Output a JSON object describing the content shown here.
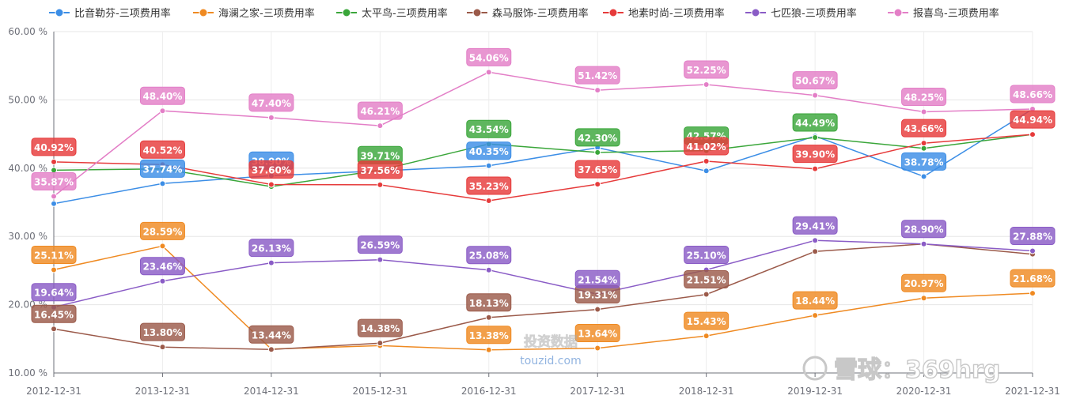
{
  "chart_data": {
    "type": "line",
    "categories": [
      "2012-12-31",
      "2013-12-31",
      "2014-12-31",
      "2015-12-31",
      "2016-12-31",
      "2017-12-31",
      "2018-12-31",
      "2019-12-31",
      "2020-12-31",
      "2021-12-31"
    ],
    "y_ticks": [
      "10.00 %",
      "20.00 %",
      "30.00 %",
      "40.00 %",
      "50.00 %",
      "60.00 %"
    ],
    "ylim": [
      10,
      60
    ],
    "grid": true,
    "legend_position": "top",
    "series": [
      {
        "name": "比音勒芬-三项费用率",
        "color": "#3c8ee6",
        "values": [
          34.8,
          37.74,
          38.9,
          39.6,
          40.35,
          43.0,
          39.6,
          44.7,
          38.78,
          48.66
        ]
      },
      {
        "name": "海澜之家-三项费用率",
        "color": "#ef8a22",
        "values": [
          25.11,
          28.59,
          13.5,
          14.0,
          13.38,
          13.64,
          15.43,
          18.44,
          20.97,
          21.68
        ]
      },
      {
        "name": "太平鸟-三项费用率",
        "color": "#3aa63a",
        "values": [
          39.7,
          39.9,
          37.3,
          39.71,
          43.54,
          42.3,
          42.57,
          44.49,
          42.9,
          44.94
        ]
      },
      {
        "name": "森马服饰-三项费用率",
        "color": "#9b5a4a",
        "values": [
          16.45,
          13.8,
          13.44,
          14.38,
          18.13,
          19.31,
          21.51,
          27.8,
          28.9,
          27.4
        ]
      },
      {
        "name": "地素时尚-三项费用率",
        "color": "#e63b3b",
        "values": [
          40.92,
          40.52,
          37.6,
          37.56,
          35.23,
          37.65,
          41.02,
          39.9,
          43.66,
          44.94
        ]
      },
      {
        "name": "七匹狼-三项费用率",
        "color": "#8a5cc6",
        "values": [
          19.64,
          23.46,
          26.13,
          26.59,
          25.08,
          21.54,
          25.1,
          29.41,
          28.9,
          27.88
        ]
      },
      {
        "name": "报喜鸟-三项费用率",
        "color": "#e37fc7",
        "values": [
          35.87,
          48.4,
          47.4,
          46.21,
          54.06,
          51.42,
          52.25,
          50.67,
          48.25,
          48.66
        ]
      }
    ],
    "data_labels": [
      {
        "series": 0,
        "index": 1,
        "text": "37.74%"
      },
      {
        "series": 0,
        "index": 2,
        "text": "38.90%"
      },
      {
        "series": 0,
        "index": 4,
        "text": "40.35%"
      },
      {
        "series": 0,
        "index": 8,
        "text": "38.78%"
      },
      {
        "series": 1,
        "index": 0,
        "text": "25.11%"
      },
      {
        "series": 1,
        "index": 1,
        "text": "28.59%"
      },
      {
        "series": 1,
        "index": 4,
        "text": "13.38%"
      },
      {
        "series": 1,
        "index": 5,
        "text": "13.64%"
      },
      {
        "series": 1,
        "index": 6,
        "text": "15.43%"
      },
      {
        "series": 1,
        "index": 7,
        "text": "18.44%"
      },
      {
        "series": 1,
        "index": 8,
        "text": "20.97%"
      },
      {
        "series": 1,
        "index": 9,
        "text": "21.68%"
      },
      {
        "series": 2,
        "index": 3,
        "text": "39.71%"
      },
      {
        "series": 2,
        "index": 4,
        "text": "43.54%"
      },
      {
        "series": 2,
        "index": 5,
        "text": "42.30%"
      },
      {
        "series": 2,
        "index": 6,
        "text": "42.57%"
      },
      {
        "series": 2,
        "index": 7,
        "text": "44.49%"
      },
      {
        "series": 3,
        "index": 0,
        "text": "16.45%"
      },
      {
        "series": 3,
        "index": 1,
        "text": "13.80%"
      },
      {
        "series": 3,
        "index": 2,
        "text": "13.44%"
      },
      {
        "series": 3,
        "index": 3,
        "text": "14.38%"
      },
      {
        "series": 3,
        "index": 4,
        "text": "18.13%"
      },
      {
        "series": 3,
        "index": 5,
        "text": "19.31%"
      },
      {
        "series": 3,
        "index": 6,
        "text": "21.51%"
      },
      {
        "series": 4,
        "index": 0,
        "text": "40.92%"
      },
      {
        "series": 4,
        "index": 1,
        "text": "40.52%"
      },
      {
        "series": 4,
        "index": 2,
        "text": "37.60%"
      },
      {
        "series": 4,
        "index": 3,
        "text": "37.56%"
      },
      {
        "series": 4,
        "index": 4,
        "text": "35.23%"
      },
      {
        "series": 4,
        "index": 5,
        "text": "37.65%"
      },
      {
        "series": 4,
        "index": 6,
        "text": "41.02%"
      },
      {
        "series": 4,
        "index": 7,
        "text": "39.90%"
      },
      {
        "series": 4,
        "index": 8,
        "text": "43.66%"
      },
      {
        "series": 4,
        "index": 9,
        "text": "44.94%"
      },
      {
        "series": 5,
        "index": 0,
        "text": "19.64%"
      },
      {
        "series": 5,
        "index": 1,
        "text": "23.46%"
      },
      {
        "series": 5,
        "index": 2,
        "text": "26.13%"
      },
      {
        "series": 5,
        "index": 3,
        "text": "26.59%"
      },
      {
        "series": 5,
        "index": 4,
        "text": "25.08%"
      },
      {
        "series": 5,
        "index": 5,
        "text": "21.54%"
      },
      {
        "series": 5,
        "index": 6,
        "text": "25.10%"
      },
      {
        "series": 5,
        "index": 7,
        "text": "29.41%"
      },
      {
        "series": 5,
        "index": 8,
        "text": "28.90%"
      },
      {
        "series": 5,
        "index": 9,
        "text": "27.88%"
      },
      {
        "series": 6,
        "index": 0,
        "text": "35.87%"
      },
      {
        "series": 6,
        "index": 1,
        "text": "48.40%"
      },
      {
        "series": 6,
        "index": 2,
        "text": "47.40%"
      },
      {
        "series": 6,
        "index": 3,
        "text": "46.21%"
      },
      {
        "series": 6,
        "index": 4,
        "text": "54.06%"
      },
      {
        "series": 6,
        "index": 5,
        "text": "51.42%"
      },
      {
        "series": 6,
        "index": 6,
        "text": "52.25%"
      },
      {
        "series": 6,
        "index": 7,
        "text": "50.67%"
      },
      {
        "series": 6,
        "index": 8,
        "text": "48.25%"
      },
      {
        "series": 6,
        "index": 9,
        "text": "48.66%"
      }
    ]
  },
  "watermarks": {
    "center_brand": "投资数据",
    "center_url": "touzid.com",
    "corner_text": "雪球：369hrg"
  }
}
